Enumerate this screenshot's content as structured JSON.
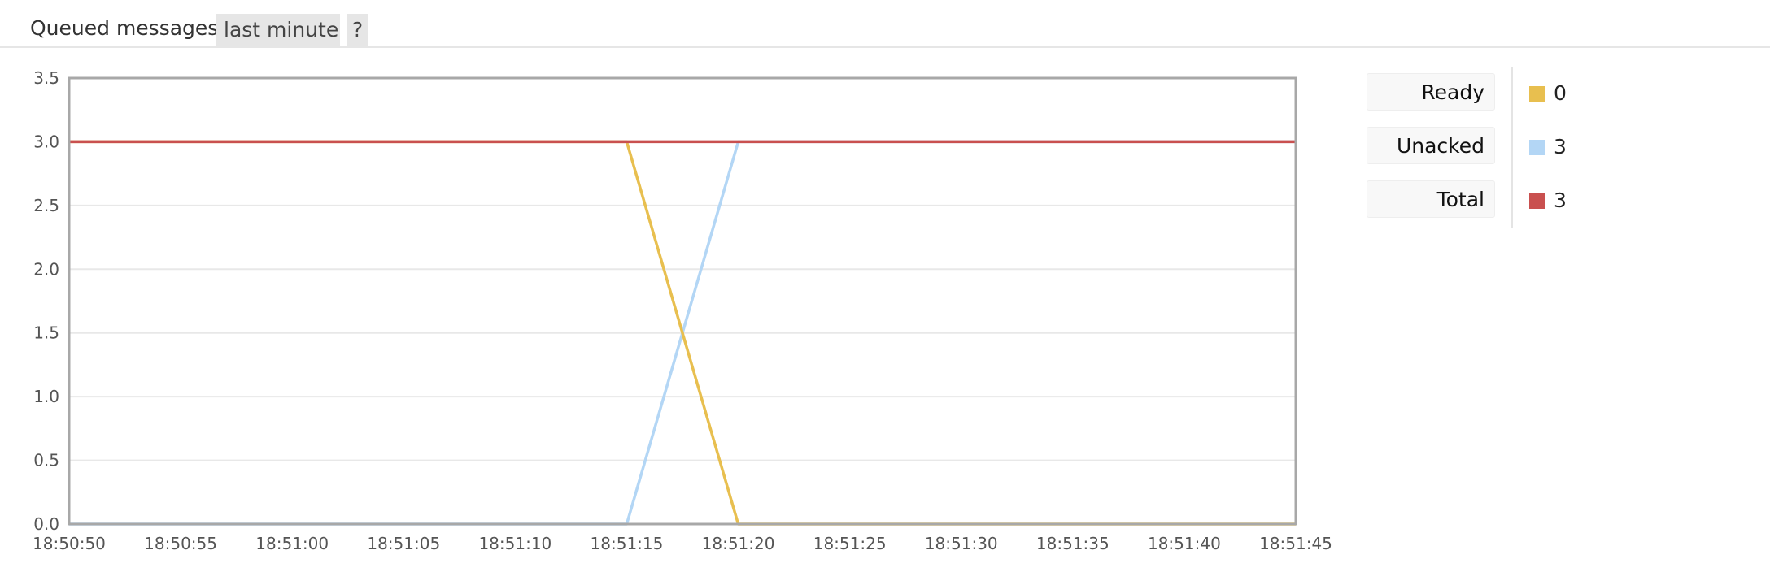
{
  "header": {
    "title": "Queued messages",
    "range_button": "last minute",
    "help_button": "?"
  },
  "legend": [
    {
      "label": "Ready",
      "value": "0",
      "color": "#e8bf4f"
    },
    {
      "label": "Unacked",
      "value": "3",
      "color": "#b3d6f5"
    },
    {
      "label": "Total",
      "value": "3",
      "color": "#c9504f"
    }
  ],
  "chart_data": {
    "type": "line",
    "x_ticks": [
      "18:50:50",
      "18:50:55",
      "18:51:00",
      "18:51:05",
      "18:51:10",
      "18:51:15",
      "18:51:20",
      "18:51:25",
      "18:51:30",
      "18:51:35",
      "18:51:40",
      "18:51:45"
    ],
    "y_ticks": [
      "0.0",
      "0.5",
      "1.0",
      "1.5",
      "2.0",
      "2.5",
      "3.0",
      "3.5"
    ],
    "ylim": [
      0,
      3.5
    ],
    "xlim": [
      "18:50:50",
      "18:51:45"
    ],
    "grid": true,
    "series": [
      {
        "name": "Ready",
        "color": "#e8bf4f",
        "points": [
          [
            "18:50:50",
            3
          ],
          [
            "18:51:15",
            3
          ],
          [
            "18:51:20",
            0
          ],
          [
            "18:51:45",
            0
          ]
        ]
      },
      {
        "name": "Unacked",
        "color": "#b3d6f5",
        "points": [
          [
            "18:50:50",
            0
          ],
          [
            "18:51:15",
            0
          ],
          [
            "18:51:20",
            3
          ],
          [
            "18:51:45",
            3
          ]
        ]
      },
      {
        "name": "Total",
        "color": "#c9504f",
        "points": [
          [
            "18:50:50",
            3
          ],
          [
            "18:51:45",
            3
          ]
        ]
      }
    ]
  }
}
